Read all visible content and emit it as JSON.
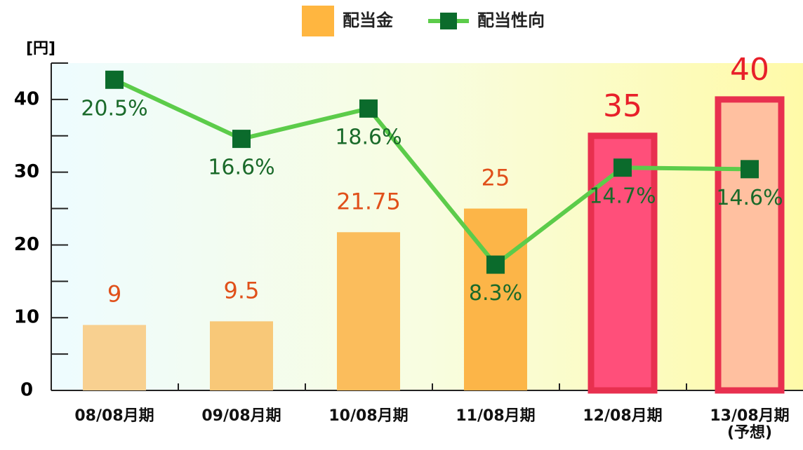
{
  "chart_data": {
    "type": "bar",
    "y_unit_label": "[円]",
    "categories": [
      "08/08月期",
      "09/08月期",
      "10/08月期",
      "11/08月期",
      "12/08月期",
      "13/08月期\n(予想)"
    ],
    "ylim": [
      0,
      45
    ],
    "yticks": [
      0,
      10,
      20,
      30,
      40
    ],
    "yminorticks": [
      5,
      15,
      25,
      35,
      45
    ],
    "y2lim": [
      0,
      21.6
    ],
    "series": [
      {
        "name": "配当金",
        "type": "bar",
        "color": "#ffb640",
        "colors": [
          "#f8d090",
          "#f8c878",
          "#fbbd5c",
          "#fcb548",
          "#ff4f7a",
          "#ffc0a0"
        ],
        "edge_colors": [
          null,
          null,
          null,
          null,
          "#e8304f",
          "#e8304f"
        ],
        "label_colors": [
          "#e0501a",
          "#e0501a",
          "#e0501a",
          "#e0501a",
          "#e8202a",
          "#e8202a"
        ],
        "values": [
          9,
          9.5,
          21.75,
          25,
          35,
          40
        ]
      },
      {
        "name": "配当性向",
        "type": "line",
        "axis": "y2",
        "color": "#5ccc4a",
        "marker_color": "#0b6b2c",
        "label_color": "#1a6a2a",
        "values": [
          20.5,
          16.6,
          18.6,
          8.3,
          14.7,
          14.6
        ],
        "value_labels": [
          "20.5%",
          "16.6%",
          "18.6%",
          "8.3%",
          "14.7%",
          "14.6%"
        ]
      }
    ]
  }
}
